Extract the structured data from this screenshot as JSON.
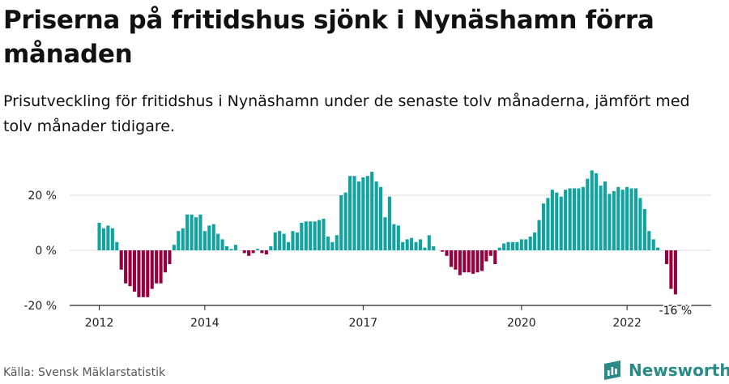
{
  "header": {
    "title": "Priserna på fritidshus sjönk i Nynäshamn förra månaden",
    "subtitle": "Prisutveckling för fritidshus i Nynäshamn under de senaste tolv månaderna, jämfört med tolv månader tidigare."
  },
  "footer": {
    "source": "Källa: Svensk Mäklarstatistik",
    "brand": "Newsworthy"
  },
  "colors": {
    "positive": "#11a39f",
    "negative": "#96003f",
    "grid": "#dddddd",
    "axis": "#222222"
  },
  "chart_data": {
    "type": "bar",
    "title": "Priserna på fritidshus sjönk i Nynäshamn förra månaden",
    "ylabel": "",
    "xlabel": "",
    "ylim": [
      -20,
      30
    ],
    "y_ticks": [
      {
        "value": 20,
        "label": "20 %"
      },
      {
        "value": 0,
        "label": "0 %"
      },
      {
        "value": -20,
        "label": "-20 %"
      }
    ],
    "x_ticks": [
      {
        "index": 0,
        "label": "2012"
      },
      {
        "index": 24,
        "label": "2014"
      },
      {
        "index": 60,
        "label": "2017"
      },
      {
        "index": 96,
        "label": "2020"
      },
      {
        "index": 120,
        "label": "2022"
      }
    ],
    "start": "2012-01",
    "end_label": "-16 %",
    "values": [
      10,
      8,
      9,
      8,
      3,
      -7,
      -12,
      -13,
      -15,
      -17,
      -17,
      -17,
      -14,
      -12,
      -12,
      -8,
      -5,
      2,
      7,
      8,
      13,
      13,
      12,
      13,
      7,
      9,
      9.5,
      6,
      4,
      1.5,
      0.5,
      2,
      0,
      -1,
      -2,
      -1,
      0.5,
      -1,
      -1.5,
      1.5,
      6.5,
      7,
      6,
      3,
      7,
      6.5,
      10,
      10.5,
      10.5,
      10.5,
      11,
      11.5,
      5,
      3,
      5.5,
      20,
      21,
      27,
      27,
      25,
      26.5,
      27,
      28.5,
      25,
      23,
      12,
      19.5,
      9.5,
      9,
      3,
      4,
      4.5,
      3,
      4,
      1,
      5.5,
      1.5,
      0,
      -0.5,
      -2,
      -6,
      -7,
      -9,
      -8,
      -8,
      -8.5,
      -8,
      -7.5,
      -4,
      -2,
      -5,
      1,
      2.5,
      3,
      3,
      3,
      4,
      4,
      5,
      6.5,
      11,
      17,
      19,
      22,
      21,
      19.5,
      22,
      22.5,
      22.5,
      22.5,
      23,
      26,
      29,
      28,
      23.5,
      25,
      20.5,
      21.5,
      23,
      22,
      23,
      22.5,
      22.5,
      19,
      15,
      7,
      4,
      1,
      0,
      -5,
      -14,
      -16
    ]
  }
}
